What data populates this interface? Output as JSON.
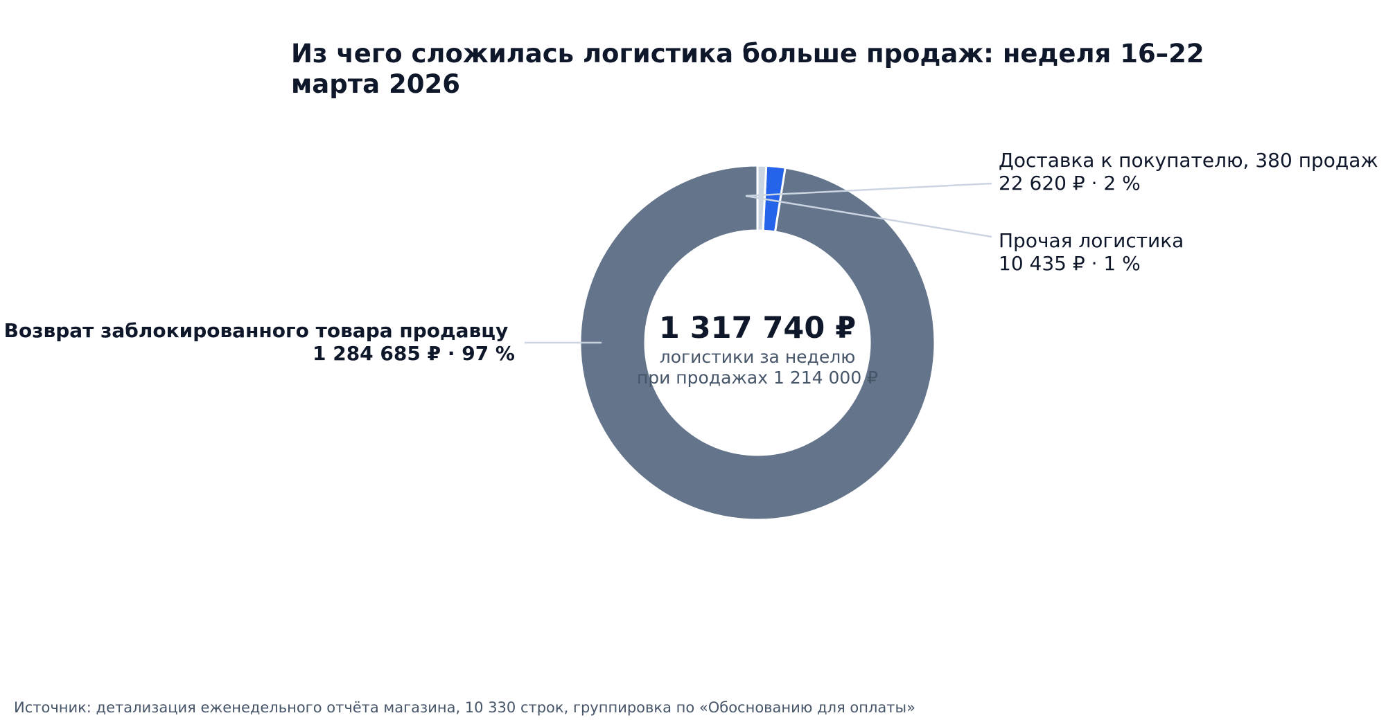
{
  "chart_data": {
    "type": "pie",
    "variant": "donut",
    "title": "Из чего сложилась логистика больше продаж: неделя 16–22 марта 2026",
    "title_lines": [
      "Из чего сложилась логистика больше продаж: неделя 16–22",
      "марта 2026"
    ],
    "center": {
      "value": "1 317 740 ₽",
      "line1": "логистики за неделю",
      "line2": "при продажах 1 214 000 ₽"
    },
    "slices": [
      {
        "name": "Возврат заблокированного товара продавцу",
        "value": 1284685,
        "value_text": "1 284 685 ₽ · 97 %",
        "color": "#64748b",
        "label_side": "left"
      },
      {
        "name": "Доставка к покупателю, 380 продаж",
        "value": 22620,
        "value_text": "22 620 ₽ · 2 %",
        "color": "#2563eb",
        "label_side": "right"
      },
      {
        "name": "Прочая логистика",
        "value": 10435,
        "value_text": "10 435 ₽ · 1 %",
        "color": "#cbd5e1",
        "label_side": "right"
      }
    ],
    "total": 1317740,
    "start_angle_deg": 0,
    "direction": "counterclockwise",
    "legend": "none",
    "source": "Источник: детализация еженедельного отчёта магазина, 10 330 строк, группировка по «Обоснованию для оплаты»"
  }
}
